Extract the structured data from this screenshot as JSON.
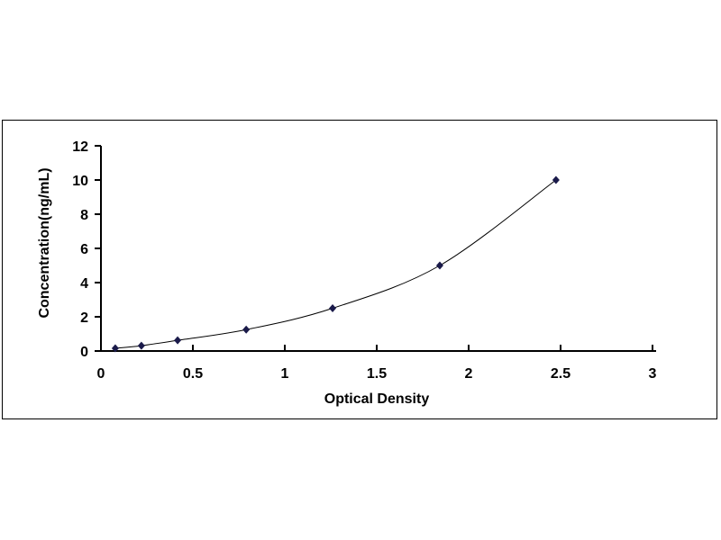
{
  "chart_data": {
    "type": "scatter",
    "title": "",
    "xlabel": "Optical Density",
    "ylabel": "Concentration(ng/mL)",
    "xlim": [
      0,
      3
    ],
    "ylim": [
      0,
      12
    ],
    "x_ticks": [
      "0",
      "0.5",
      "1",
      "1.5",
      "2",
      "2.5",
      "3"
    ],
    "y_ticks": [
      "0",
      "2",
      "4",
      "6",
      "8",
      "10",
      "12"
    ],
    "grid": false,
    "legend": "none",
    "series": [
      {
        "x": [
          0.078,
          0.22,
          0.417,
          0.79,
          1.26,
          1.843,
          2.475
        ],
        "y": [
          0.156,
          0.312,
          0.625,
          1.25,
          2.5,
          5,
          10
        ],
        "marker": "diamond",
        "marker_color": "#1a1a4a",
        "line": "smooth",
        "line_color": "#000000"
      }
    ]
  }
}
